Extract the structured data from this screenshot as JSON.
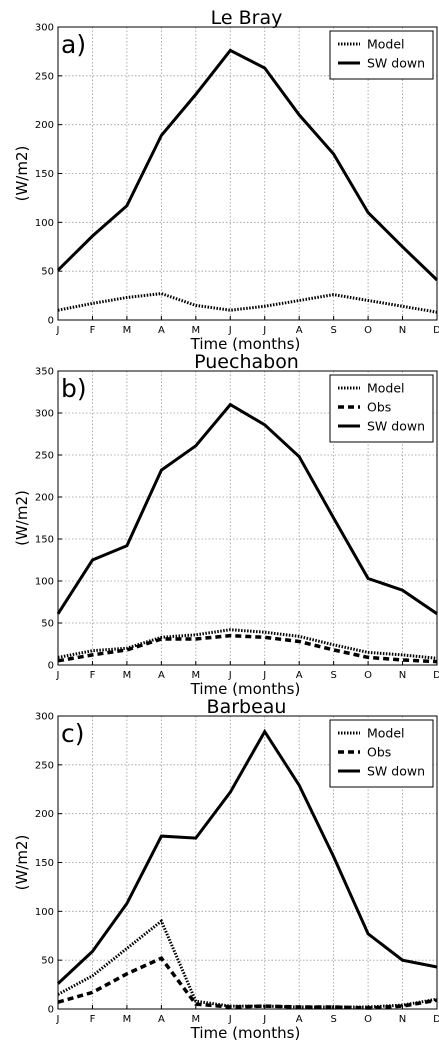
{
  "chart_data": [
    {
      "type": "line",
      "panel_label": "a)",
      "title": "Le Bray",
      "xlabel": "Time (months)",
      "ylabel": "(W/m2)",
      "categories": [
        "J",
        "F",
        "M",
        "A",
        "M",
        "J",
        "J",
        "A",
        "S",
        "O",
        "N",
        "D"
      ],
      "ylim": [
        0,
        300
      ],
      "yticks": [
        0,
        50,
        100,
        150,
        200,
        250,
        300
      ],
      "grid": true,
      "legend_position": "top-right",
      "series": [
        {
          "name": "Model",
          "style": "dotted",
          "values": [
            10,
            17,
            23,
            27,
            15,
            10,
            14,
            20,
            26,
            20,
            14,
            8
          ]
        },
        {
          "name": "SW down",
          "style": "solid",
          "values": [
            51,
            86,
            117,
            189,
            231,
            276,
            258,
            210,
            170,
            110,
            75,
            41
          ]
        }
      ]
    },
    {
      "type": "line",
      "panel_label": "b)",
      "title": "Puechabon",
      "xlabel": "Time (months)",
      "ylabel": "(W/m2)",
      "categories": [
        "J",
        "F",
        "M",
        "A",
        "M",
        "J",
        "J",
        "A",
        "S",
        "O",
        "N",
        "D"
      ],
      "ylim": [
        0,
        350
      ],
      "yticks": [
        0,
        50,
        100,
        150,
        200,
        250,
        300,
        350
      ],
      "grid": true,
      "legend_position": "top-right",
      "series": [
        {
          "name": "Model",
          "style": "dotted",
          "values": [
            9,
            17,
            20,
            33,
            36,
            42,
            39,
            34,
            24,
            15,
            12,
            8
          ]
        },
        {
          "name": "Obs",
          "style": "dashed",
          "values": [
            5,
            12,
            18,
            31,
            31,
            35,
            33,
            28,
            18,
            9,
            6,
            4
          ]
        },
        {
          "name": "SW down",
          "style": "solid",
          "values": [
            61,
            125,
            142,
            232,
            261,
            310,
            286,
            248,
            175,
            103,
            89,
            61
          ]
        }
      ]
    },
    {
      "type": "line",
      "panel_label": "c)",
      "title": "Barbeau",
      "xlabel": "Time (months)",
      "ylabel": "(W/m2)",
      "categories": [
        "J",
        "F",
        "M",
        "A",
        "M",
        "J",
        "J",
        "A",
        "S",
        "O",
        "N",
        "D"
      ],
      "ylim": [
        0,
        300
      ],
      "yticks": [
        0,
        50,
        100,
        150,
        200,
        250,
        300
      ],
      "grid": true,
      "legend_position": "top-right",
      "series": [
        {
          "name": "Model",
          "style": "dotted",
          "values": [
            15,
            34,
            62,
            90,
            8,
            3,
            3,
            2,
            2,
            2,
            4,
            10
          ]
        },
        {
          "name": "Obs",
          "style": "dashed",
          "values": [
            7,
            17,
            36,
            52,
            5,
            2,
            3,
            2,
            2,
            1,
            3,
            9
          ]
        },
        {
          "name": "SW down",
          "style": "solid",
          "values": [
            26,
            59,
            108,
            177,
            175,
            222,
            284,
            229,
            156,
            77,
            50,
            43
          ]
        }
      ]
    }
  ]
}
